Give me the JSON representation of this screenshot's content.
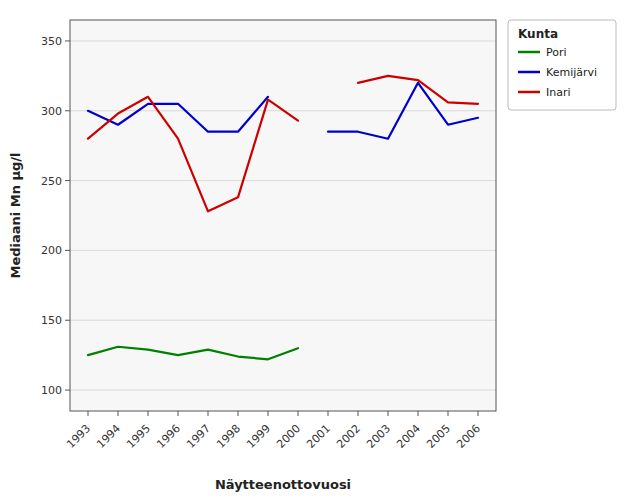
{
  "chart_data": {
    "type": "line",
    "xlabel": "Näytteenottovuosi",
    "ylabel": "Mediaani Mn µg/l",
    "legend_title": "Kunta",
    "x": [
      1993,
      1994,
      1995,
      1996,
      1997,
      1998,
      1999,
      2000,
      2001,
      2002,
      2003,
      2004,
      2005,
      2006
    ],
    "series": [
      {
        "name": "Pori",
        "color": "#008000",
        "values": [
          125,
          131,
          129,
          125,
          129,
          124,
          122,
          130,
          null,
          null,
          null,
          null,
          null,
          null
        ]
      },
      {
        "name": "Kemijärvi",
        "color": "#0000CC",
        "values": [
          300,
          290,
          305,
          305,
          285,
          285,
          310,
          null,
          285,
          285,
          280,
          320,
          290,
          295
        ]
      },
      {
        "name": "Inari",
        "color": "#CC0000",
        "values": [
          280,
          298,
          310,
          280,
          228,
          238,
          308,
          293,
          null,
          320,
          325,
          322,
          306,
          305
        ]
      }
    ],
    "xlim": [
      1992.4,
      2006.6
    ],
    "xticks": [
      1993,
      1994,
      1995,
      1996,
      1997,
      1998,
      1999,
      2000,
      2001,
      2002,
      2003,
      2004,
      2005,
      2006
    ],
    "ylim": [
      85,
      365
    ],
    "yticks": [
      100,
      150,
      200,
      250,
      300,
      350
    ],
    "grid": true,
    "legend": "right"
  }
}
